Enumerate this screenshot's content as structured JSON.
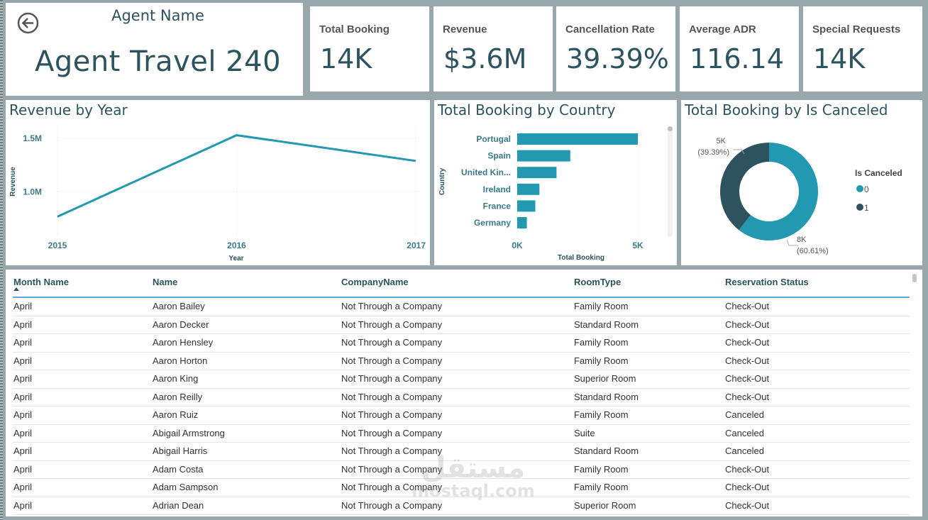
{
  "agent_card": {
    "label": "Agent Name",
    "value": "Agent Travel 240",
    "back_icon": "back-arrow-circle-icon"
  },
  "kpis": [
    {
      "label": "Total Booking",
      "value": "14K"
    },
    {
      "label": "Revenue",
      "value": "$3.6M"
    },
    {
      "label": "Cancellation Rate",
      "value": "39.39%"
    },
    {
      "label": "Average ADR",
      "value": "116.14"
    },
    {
      "label": "Special Requests",
      "value": "14K"
    }
  ],
  "colors": {
    "primary": "#2398b1",
    "dark": "#2c535e",
    "background": "#97a7ab"
  },
  "chart_data": [
    {
      "type": "line",
      "title": "Revenue by Year",
      "xlabel": "Year",
      "ylabel": "Revenue",
      "x": [
        "2015",
        "2016",
        "2017"
      ],
      "series": [
        {
          "name": "Revenue",
          "values": [
            770000,
            1530000,
            1290000
          ]
        }
      ],
      "yticks": [
        {
          "value": 1000000,
          "label": "1.0M"
        },
        {
          "value": 1500000,
          "label": "1.5M"
        }
      ],
      "ylim": [
        600000,
        1620000
      ],
      "grid": true
    },
    {
      "type": "bar",
      "orientation": "horizontal",
      "title": "Total Booking by Country",
      "xlabel": "Total Booking",
      "ylabel": "Country",
      "categories": [
        "Portugal",
        "Spain",
        "United Kin...",
        "Ireland",
        "France",
        "Germany"
      ],
      "values": [
        5000,
        2200,
        1630,
        920,
        750,
        400
      ],
      "xticks": [
        {
          "value": 0,
          "label": "0K"
        },
        {
          "value": 5000,
          "label": "5K"
        }
      ],
      "xlim": [
        0,
        5000
      ],
      "grid": true
    },
    {
      "type": "pie",
      "donut": true,
      "title": "Total Booking by Is Canceled",
      "legend_title": "Is Canceled",
      "legend_position": "right",
      "slices": [
        {
          "label": "0",
          "value": 8000,
          "percent": 60.61,
          "data_label": "8K",
          "pct_label": "(60.61%)",
          "color": "#2398b1"
        },
        {
          "label": "1",
          "value": 5000,
          "percent": 39.39,
          "data_label": "5K",
          "pct_label": "(39.39%)",
          "color": "#2c535e"
        }
      ]
    }
  ],
  "table": {
    "columns": [
      "Month Name",
      "Name",
      "CompanyName",
      "RoomType",
      "Reservation Status"
    ],
    "sorted_column": "Month Name",
    "sort_direction": "ascending",
    "rows": [
      [
        "April",
        "Aaron Bailey",
        "Not Through a Company",
        "Family Room",
        "Check-Out"
      ],
      [
        "April",
        "Aaron Decker",
        "Not Through a Company",
        "Standard Room",
        "Check-Out"
      ],
      [
        "April",
        "Aaron Hensley",
        "Not Through a Company",
        "Family Room",
        "Check-Out"
      ],
      [
        "April",
        "Aaron Horton",
        "Not Through a Company",
        "Family Room",
        "Check-Out"
      ],
      [
        "April",
        "Aaron King",
        "Not Through a Company",
        "Superior Room",
        "Check-Out"
      ],
      [
        "April",
        "Aaron Reilly",
        "Not Through a Company",
        "Standard Room",
        "Check-Out"
      ],
      [
        "April",
        "Aaron Ruiz",
        "Not Through a Company",
        "Family Room",
        "Canceled"
      ],
      [
        "April",
        "Abigail Armstrong",
        "Not Through a Company",
        "Suite",
        "Canceled"
      ],
      [
        "April",
        "Abigail Harris",
        "Not Through a Company",
        "Standard Room",
        "Canceled"
      ],
      [
        "April",
        "Adam Costa",
        "Not Through a Company",
        "Family Room",
        "Check-Out"
      ],
      [
        "April",
        "Adam Sampson",
        "Not Through a Company",
        "Family Room",
        "Check-Out"
      ],
      [
        "April",
        "Adrian Dean",
        "Not Through a Company",
        "Superior Room",
        "Check-Out"
      ]
    ]
  },
  "watermark": {
    "arabic": "مستقل",
    "latin": "mostaql.com"
  }
}
